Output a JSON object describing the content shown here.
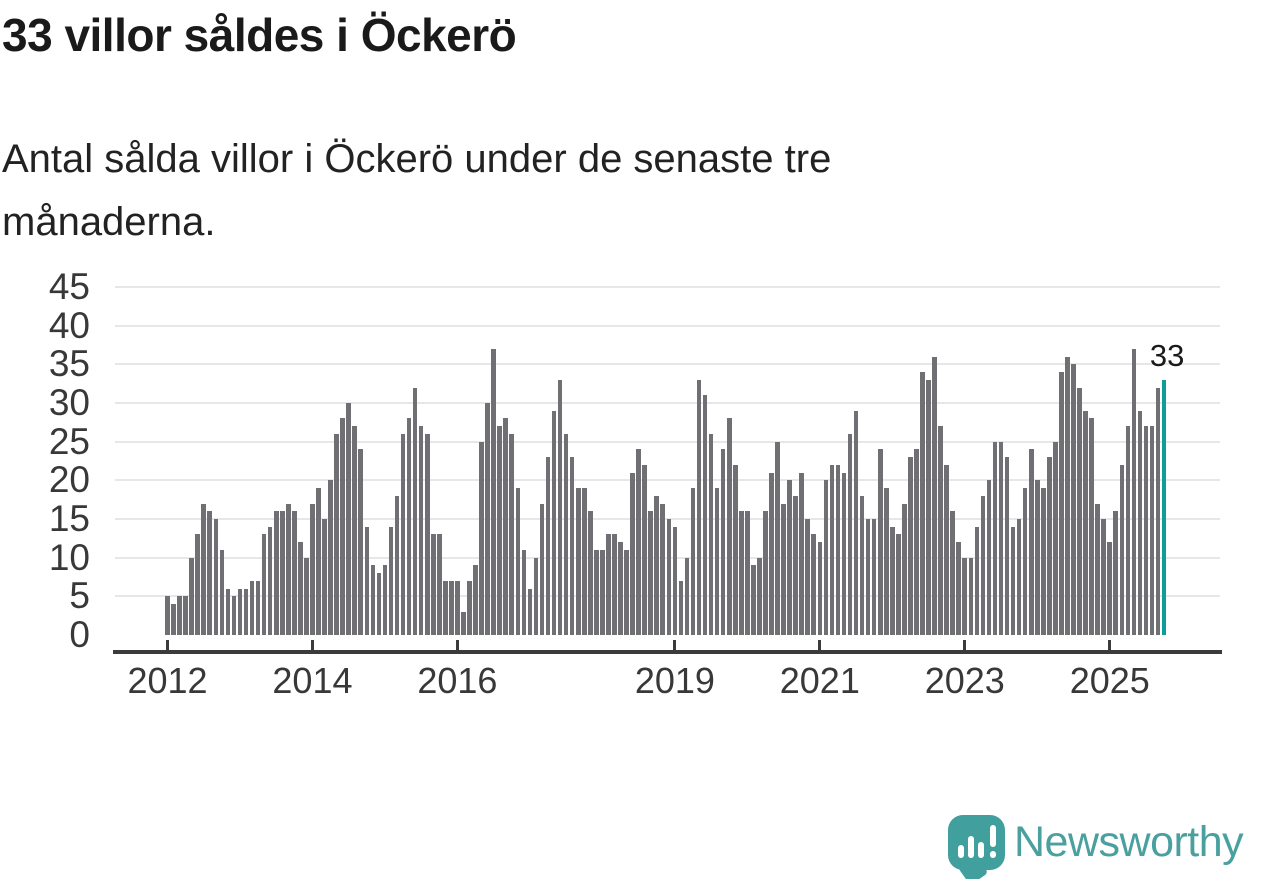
{
  "header": {
    "title": "33 villor såldes i Öckerö",
    "subtitle": "Antal sålda villor i Öckerö under de senaste tre månaderna."
  },
  "chart_data": {
    "type": "bar",
    "title": "33 villor såldes i Öckerö",
    "xlabel": "",
    "ylabel": "",
    "x_start": "2012-01",
    "x_end": "2025-10",
    "x_frequency": "monthly",
    "values": [
      5,
      4,
      5,
      5,
      10,
      13,
      17,
      16,
      15,
      11,
      6,
      5,
      6,
      6,
      7,
      7,
      13,
      14,
      16,
      16,
      17,
      16,
      12,
      10,
      17,
      19,
      15,
      20,
      26,
      28,
      30,
      27,
      24,
      14,
      9,
      8,
      9,
      14,
      18,
      26,
      28,
      32,
      27,
      26,
      13,
      13,
      7,
      7,
      7,
      3,
      7,
      9,
      25,
      30,
      37,
      27,
      28,
      26,
      19,
      11,
      6,
      10,
      17,
      23,
      29,
      33,
      26,
      23,
      19,
      19,
      16,
      11,
      11,
      13,
      13,
      12,
      11,
      21,
      24,
      22,
      16,
      18,
      17,
      15,
      14,
      7,
      10,
      19,
      33,
      31,
      26,
      19,
      24,
      28,
      22,
      16,
      16,
      9,
      10,
      16,
      21,
      25,
      17,
      20,
      18,
      21,
      15,
      13,
      12,
      20,
      22,
      22,
      21,
      26,
      29,
      18,
      15,
      15,
      24,
      19,
      14,
      13,
      17,
      23,
      24,
      34,
      33,
      36,
      27,
      22,
      16,
      12,
      10,
      10,
      14,
      18,
      20,
      25,
      25,
      23,
      14,
      15,
      19,
      24,
      20,
      19,
      23,
      25,
      34,
      36,
      35,
      32,
      29,
      28,
      17,
      15,
      12,
      16,
      22,
      27,
      37,
      29,
      27,
      27,
      32,
      33
    ],
    "highlight": {
      "index": 165,
      "value": 33,
      "label": "33"
    },
    "ylim": [
      0,
      45
    ],
    "y_ticks": [
      0,
      5,
      10,
      15,
      20,
      25,
      30,
      35,
      40,
      45
    ],
    "x_ticks": [
      "2012",
      "2014",
      "2016",
      "2019",
      "2021",
      "2023",
      "2025"
    ],
    "grid": true,
    "legend": false,
    "bar_color": "#6f6f74",
    "highlight_color": "#0f9d99"
  },
  "footer": {
    "brand": "Newsworthy",
    "brand_color": "#4aa09e",
    "logo_color": "#41a09d",
    "logo_icon": "newsworthy-speech-bubble-chart-icon"
  }
}
